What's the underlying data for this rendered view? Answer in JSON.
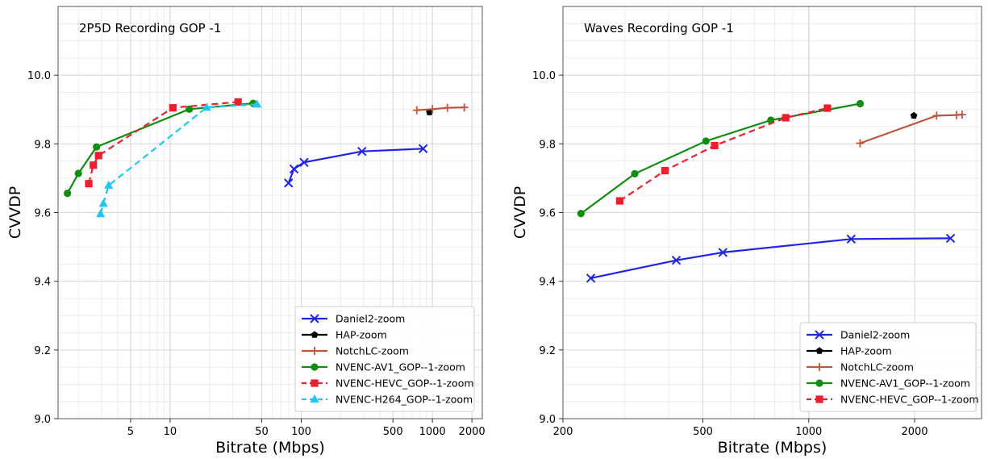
{
  "chart_data": [
    {
      "type": "line",
      "title": "2P5D Recording GOP -1",
      "xlabel": "Bitrate (Mbps)",
      "ylabel": "CVVDP",
      "xscale": "log",
      "xlim": [
        1.4,
        2400
      ],
      "ylim": [
        9.0,
        10.2
      ],
      "xticks": [
        5,
        10,
        50,
        100,
        500,
        1000,
        2000
      ],
      "xtick_labels": [
        "5",
        "10",
        "50",
        "100",
        "500",
        "1000",
        "2000"
      ],
      "yticks": [
        9.0,
        9.2,
        9.4,
        9.6,
        9.8,
        10.0
      ],
      "ytick_labels": [
        "9.0",
        "9.2",
        "9.4",
        "9.6",
        "9.8",
        "10.0"
      ],
      "grid": true,
      "legend_position": "bottom-right",
      "series": [
        {
          "name": "Daniel2-zoom",
          "color": "#1f24e6",
          "marker": "x",
          "dashed": false,
          "x": [
            80,
            88,
            105,
            290,
            850
          ],
          "y": [
            9.686,
            9.727,
            9.746,
            9.778,
            9.786
          ]
        },
        {
          "name": "HAP-zoom",
          "color": "#000000",
          "marker": "pentagon",
          "dashed": false,
          "x": [
            950
          ],
          "y": [
            9.892
          ]
        },
        {
          "name": "NotchLC-zoom",
          "color": "#c0553a",
          "marker": "plus",
          "dashed": false,
          "x": [
            760,
            1000,
            1300,
            1750
          ],
          "y": [
            9.898,
            9.901,
            9.905,
            9.906
          ]
        },
        {
          "name": "NVENC-AV1_GOP--1-zoom",
          "color": "#118d11",
          "marker": "circle",
          "dashed": false,
          "x": [
            1.65,
            2.0,
            2.75,
            14.0,
            43.0
          ],
          "y": [
            9.656,
            9.714,
            9.791,
            9.901,
            9.918
          ]
        },
        {
          "name": "NVENC-HEVC_GOP--1-zoom",
          "color": "#ef1e2e",
          "marker": "square",
          "dashed": true,
          "x": [
            2.4,
            2.6,
            2.85,
            10.5,
            33.0
          ],
          "y": [
            9.684,
            9.738,
            9.766,
            9.905,
            9.922
          ]
        },
        {
          "name": "NVENC-H264_GOP--1-zoom",
          "color": "#1ec7f5",
          "marker": "triangle",
          "dashed": true,
          "x": [
            2.95,
            3.1,
            3.4,
            19.0,
            46.0
          ],
          "y": [
            9.596,
            9.626,
            9.679,
            9.906,
            9.915
          ]
        }
      ]
    },
    {
      "type": "line",
      "title": "Waves Recording GOP -1",
      "xlabel": "Bitrate (Mbps)",
      "ylabel": "CVVDP",
      "xscale": "log",
      "xlim": [
        200,
        3100
      ],
      "ylim": [
        9.0,
        10.2
      ],
      "xticks": [
        200,
        500,
        1000,
        2000
      ],
      "xtick_labels": [
        "200",
        "500",
        "1000",
        "2000"
      ],
      "yticks": [
        9.0,
        9.2,
        9.4,
        9.6,
        9.8,
        10.0
      ],
      "ytick_labels": [
        "9.0",
        "9.2",
        "9.4",
        "9.6",
        "9.8",
        "10.0"
      ],
      "grid": true,
      "legend_position": "bottom-right",
      "series": [
        {
          "name": "Daniel2-zoom",
          "color": "#1f24e6",
          "marker": "x",
          "dashed": false,
          "x": [
            240,
            420,
            570,
            1320,
            2530
          ],
          "y": [
            9.409,
            9.461,
            9.484,
            9.523,
            9.525
          ]
        },
        {
          "name": "HAP-zoom",
          "color": "#000000",
          "marker": "pentagon",
          "dashed": false,
          "x": [
            1990
          ],
          "y": [
            9.882
          ]
        },
        {
          "name": "NotchLC-zoom",
          "color": "#c0553a",
          "marker": "plus",
          "dashed": false,
          "x": [
            1400,
            2310,
            2630,
            2730
          ],
          "y": [
            9.802,
            9.882,
            9.884,
            9.885
          ]
        },
        {
          "name": "NVENC-AV1_GOP--1-zoom",
          "color": "#118d11",
          "marker": "circle",
          "dashed": false,
          "x": [
            225,
            320,
            510,
            780,
            1400
          ],
          "y": [
            9.597,
            9.713,
            9.808,
            9.869,
            9.917
          ]
        },
        {
          "name": "NVENC-HEVC_GOP--1-zoom",
          "color": "#ef1e2e",
          "marker": "square",
          "dashed": true,
          "x": [
            290,
            390,
            540,
            860,
            1130
          ],
          "y": [
            9.634,
            9.722,
            9.795,
            9.876,
            9.904
          ]
        }
      ]
    }
  ]
}
